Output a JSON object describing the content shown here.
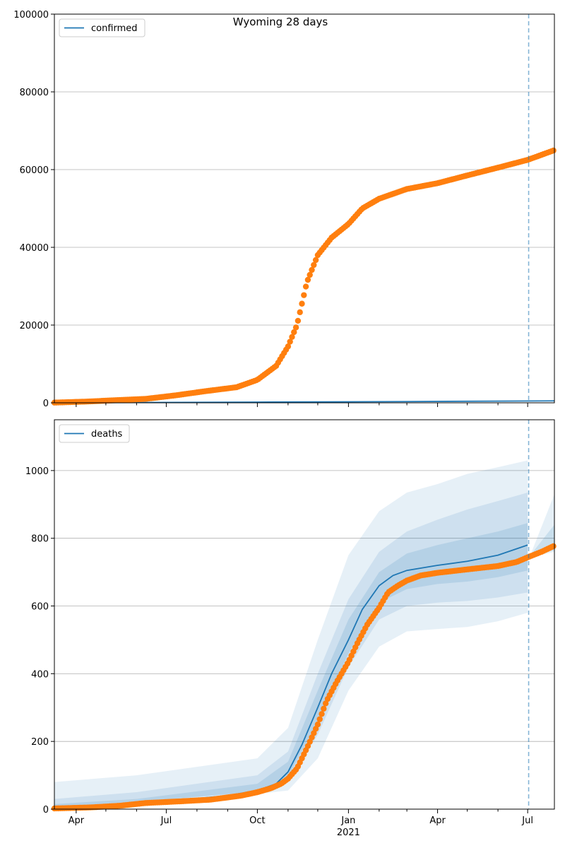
{
  "chart_data": [
    {
      "type": "line",
      "title": "Wyoming 28 days",
      "legend": {
        "label": "confirmed",
        "placement": "top-left"
      },
      "x_range": [
        "2020-03-10",
        "2021-07-28"
      ],
      "ylim": [
        0,
        100000
      ],
      "yticks": [
        0,
        20000,
        40000,
        60000,
        80000,
        100000
      ],
      "grid": "horizontal",
      "vline_date": "2021-07-02",
      "model_line": {
        "color": "#1f77b4",
        "points": [
          [
            "2020-03-10",
            0
          ],
          [
            "2020-10-01",
            180
          ],
          [
            "2021-03-01",
            320
          ],
          [
            "2021-07-28",
            500
          ]
        ]
      },
      "observed": {
        "color": "#ff7f0e",
        "points": [
          [
            "2020-03-10",
            50
          ],
          [
            "2020-04-10",
            300
          ],
          [
            "2020-05-10",
            650
          ],
          [
            "2020-06-10",
            1000
          ],
          [
            "2020-07-10",
            1900
          ],
          [
            "2020-08-10",
            3000
          ],
          [
            "2020-09-10",
            4000
          ],
          [
            "2020-10-01",
            5900
          ],
          [
            "2020-10-20",
            9500
          ],
          [
            "2020-11-01",
            14500
          ],
          [
            "2020-11-10",
            20000
          ],
          [
            "2020-11-20",
            31000
          ],
          [
            "2020-12-01",
            38000
          ],
          [
            "2020-12-15",
            42500
          ],
          [
            "2021-01-01",
            46000
          ],
          [
            "2021-01-15",
            50000
          ],
          [
            "2021-02-01",
            52500
          ],
          [
            "2021-03-01",
            55000
          ],
          [
            "2021-04-01",
            56500
          ],
          [
            "2021-05-01",
            58500
          ],
          [
            "2021-06-01",
            60500
          ],
          [
            "2021-07-01",
            62500
          ],
          [
            "2021-07-28",
            65000
          ]
        ]
      }
    },
    {
      "type": "line",
      "legend": {
        "label": "deaths",
        "placement": "top-left"
      },
      "x_range": [
        "2020-03-10",
        "2021-07-28"
      ],
      "ylim": [
        0,
        1150
      ],
      "yticks": [
        0,
        200,
        400,
        600,
        800,
        1000
      ],
      "grid": "horizontal",
      "vline_date": "2021-07-02",
      "xticks": [
        {
          "date": "2020-04-01",
          "label": "Apr"
        },
        {
          "date": "2020-07-01",
          "label": "Jul"
        },
        {
          "date": "2020-10-01",
          "label": "Oct"
        },
        {
          "date": "2021-01-01",
          "label": "Jan",
          "sublabel": "2021"
        },
        {
          "date": "2021-04-01",
          "label": "Apr"
        },
        {
          "date": "2021-07-01",
          "label": "Jul"
        }
      ],
      "model_line": {
        "color": "#1f77b4",
        "points": [
          [
            "2020-03-10",
            3
          ],
          [
            "2020-06-01",
            15
          ],
          [
            "2020-09-01",
            40
          ],
          [
            "2020-10-01",
            55
          ],
          [
            "2020-10-20",
            75
          ],
          [
            "2020-11-01",
            110
          ],
          [
            "2020-11-15",
            190
          ],
          [
            "2020-12-01",
            300
          ],
          [
            "2020-12-15",
            400
          ],
          [
            "2021-01-01",
            500
          ],
          [
            "2021-01-15",
            590
          ],
          [
            "2021-02-01",
            660
          ],
          [
            "2021-02-15",
            690
          ],
          [
            "2021-03-01",
            705
          ],
          [
            "2021-04-01",
            720
          ],
          [
            "2021-05-01",
            732
          ],
          [
            "2021-06-01",
            750
          ],
          [
            "2021-07-01",
            780
          ]
        ]
      },
      "bands": [
        {
          "color": "#1f77b4",
          "opacity": 0.11,
          "lower": [
            [
              "2020-03-10",
              0
            ],
            [
              "2020-10-01",
              45
            ],
            [
              "2020-11-01",
              55
            ],
            [
              "2020-12-01",
              150
            ],
            [
              "2021-01-01",
              350
            ],
            [
              "2021-02-01",
              480
            ],
            [
              "2021-03-01",
              525
            ],
            [
              "2021-04-01",
              532
            ],
            [
              "2021-05-01",
              538
            ],
            [
              "2021-06-01",
              555
            ],
            [
              "2021-07-01",
              580
            ]
          ],
          "upper": [
            [
              "2020-03-10",
              80
            ],
            [
              "2020-06-01",
              100
            ],
            [
              "2020-10-01",
              150
            ],
            [
              "2020-11-01",
              240
            ],
            [
              "2020-12-01",
              500
            ],
            [
              "2021-01-01",
              750
            ],
            [
              "2021-02-01",
              880
            ],
            [
              "2021-03-01",
              935
            ],
            [
              "2021-04-01",
              960
            ],
            [
              "2021-05-01",
              990
            ],
            [
              "2021-06-01",
              1010
            ],
            [
              "2021-07-01",
              1030
            ]
          ]
        },
        {
          "color": "#1f77b4",
          "opacity": 0.12,
          "lower": [
            [
              "2020-03-10",
              0
            ],
            [
              "2020-10-01",
              50
            ],
            [
              "2020-11-01",
              80
            ],
            [
              "2020-12-01",
              220
            ],
            [
              "2021-01-01",
              420
            ],
            [
              "2021-02-01",
              560
            ],
            [
              "2021-03-01",
              600
            ],
            [
              "2021-04-01",
              610
            ],
            [
              "2021-05-01",
              615
            ],
            [
              "2021-06-01",
              625
            ],
            [
              "2021-07-01",
              640
            ]
          ],
          "upper": [
            [
              "2020-03-10",
              30
            ],
            [
              "2020-06-01",
              50
            ],
            [
              "2020-10-01",
              100
            ],
            [
              "2020-11-01",
              170
            ],
            [
              "2020-12-01",
              400
            ],
            [
              "2021-01-01",
              620
            ],
            [
              "2021-02-01",
              760
            ],
            [
              "2021-03-01",
              820
            ],
            [
              "2021-04-01",
              855
            ],
            [
              "2021-05-01",
              885
            ],
            [
              "2021-06-01",
              910
            ],
            [
              "2021-07-01",
              935
            ]
          ]
        },
        {
          "color": "#1f77b4",
          "opacity": 0.14,
          "lower": [
            [
              "2020-03-10",
              0
            ],
            [
              "2020-10-01",
              52
            ],
            [
              "2020-11-01",
              95
            ],
            [
              "2020-12-01",
              260
            ],
            [
              "2021-01-01",
              460
            ],
            [
              "2021-02-01",
              610
            ],
            [
              "2021-03-01",
              650
            ],
            [
              "2021-04-01",
              665
            ],
            [
              "2021-05-01",
              672
            ],
            [
              "2021-06-01",
              685
            ],
            [
              "2021-07-01",
              705
            ]
          ],
          "upper": [
            [
              "2020-03-10",
              15
            ],
            [
              "2020-06-01",
              30
            ],
            [
              "2020-10-01",
              75
            ],
            [
              "2020-11-01",
              140
            ],
            [
              "2020-12-01",
              350
            ],
            [
              "2021-01-01",
              560
            ],
            [
              "2021-02-01",
              700
            ],
            [
              "2021-03-01",
              755
            ],
            [
              "2021-04-01",
              780
            ],
            [
              "2021-05-01",
              800
            ],
            [
              "2021-06-01",
              820
            ],
            [
              "2021-07-01",
              845
            ]
          ]
        }
      ],
      "tail_bands": [
        {
          "color": "#1f77b4",
          "opacity": 0.11,
          "lower": [
            [
              "2021-07-05",
              745
            ],
            [
              "2021-07-28",
              760
            ]
          ],
          "upper": [
            [
              "2021-07-05",
              760
            ],
            [
              "2021-07-28",
              930
            ]
          ]
        },
        {
          "color": "#1f77b4",
          "opacity": 0.14,
          "lower": [
            [
              "2021-07-05",
              748
            ],
            [
              "2021-07-28",
              765
            ]
          ],
          "upper": [
            [
              "2021-07-05",
              755
            ],
            [
              "2021-07-28",
              840
            ]
          ]
        }
      ],
      "observed": {
        "color": "#ff7f0e",
        "points": [
          [
            "2020-03-10",
            2
          ],
          [
            "2020-04-15",
            5
          ],
          [
            "2020-05-15",
            10
          ],
          [
            "2020-06-10",
            18
          ],
          [
            "2020-07-15",
            23
          ],
          [
            "2020-08-15",
            28
          ],
          [
            "2020-09-15",
            40
          ],
          [
            "2020-10-01",
            50
          ],
          [
            "2020-10-15",
            62
          ],
          [
            "2020-10-25",
            75
          ],
          [
            "2020-11-01",
            90
          ],
          [
            "2020-11-10",
            120
          ],
          [
            "2020-11-20",
            180
          ],
          [
            "2020-12-01",
            250
          ],
          [
            "2020-12-10",
            320
          ],
          [
            "2020-12-20",
            375
          ],
          [
            "2021-01-01",
            435
          ],
          [
            "2021-01-10",
            490
          ],
          [
            "2021-01-20",
            545
          ],
          [
            "2021-02-01",
            595
          ],
          [
            "2021-02-10",
            640
          ],
          [
            "2021-02-20",
            660
          ],
          [
            "2021-03-01",
            675
          ],
          [
            "2021-03-15",
            690
          ],
          [
            "2021-04-01",
            698
          ],
          [
            "2021-05-01",
            708
          ],
          [
            "2021-06-01",
            718
          ],
          [
            "2021-06-20",
            730
          ],
          [
            "2021-07-02",
            745
          ],
          [
            "2021-07-15",
            760
          ],
          [
            "2021-07-28",
            778
          ]
        ]
      }
    }
  ]
}
